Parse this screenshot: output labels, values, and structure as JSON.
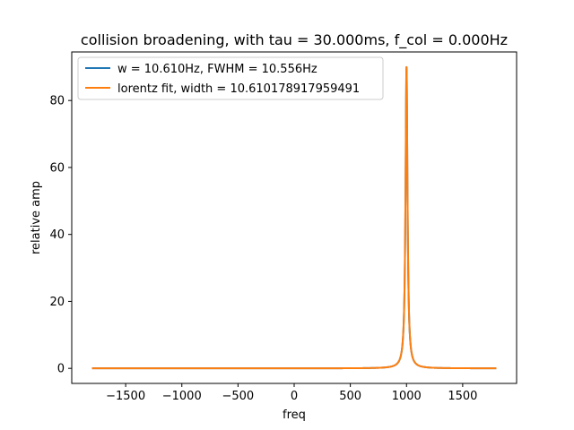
{
  "chart_data": {
    "type": "line",
    "title": "collision broadening, with tau = 30.000ms, f_col = 0.000Hz",
    "xlabel": "freq",
    "ylabel": "relative amp",
    "xlim": [
      -1980,
      1980
    ],
    "ylim": [
      -4.5,
      94.5
    ],
    "xticks": [
      -1500,
      -1000,
      -500,
      0,
      500,
      1000,
      1500
    ],
    "xtick_labels": [
      "−1500",
      "−1000",
      "−500",
      "0",
      "500",
      "1000",
      "1500"
    ],
    "yticks": [
      0,
      20,
      40,
      60,
      80
    ],
    "ytick_labels": [
      "0",
      "20",
      "40",
      "60",
      "80"
    ],
    "grid": false,
    "legend_position": "upper-left",
    "x_range": [
      -1800,
      1800
    ],
    "peak_center": 1000,
    "peak_height": 90,
    "series": [
      {
        "name": "w = 10.610Hz, FWHM = 10.556Hz",
        "color": "#1f77b4",
        "half_width": 10.556
      },
      {
        "name": "lorentz fit, width = 10.610178917959491",
        "color": "#ff7f0e",
        "half_width": 10.61
      }
    ]
  }
}
